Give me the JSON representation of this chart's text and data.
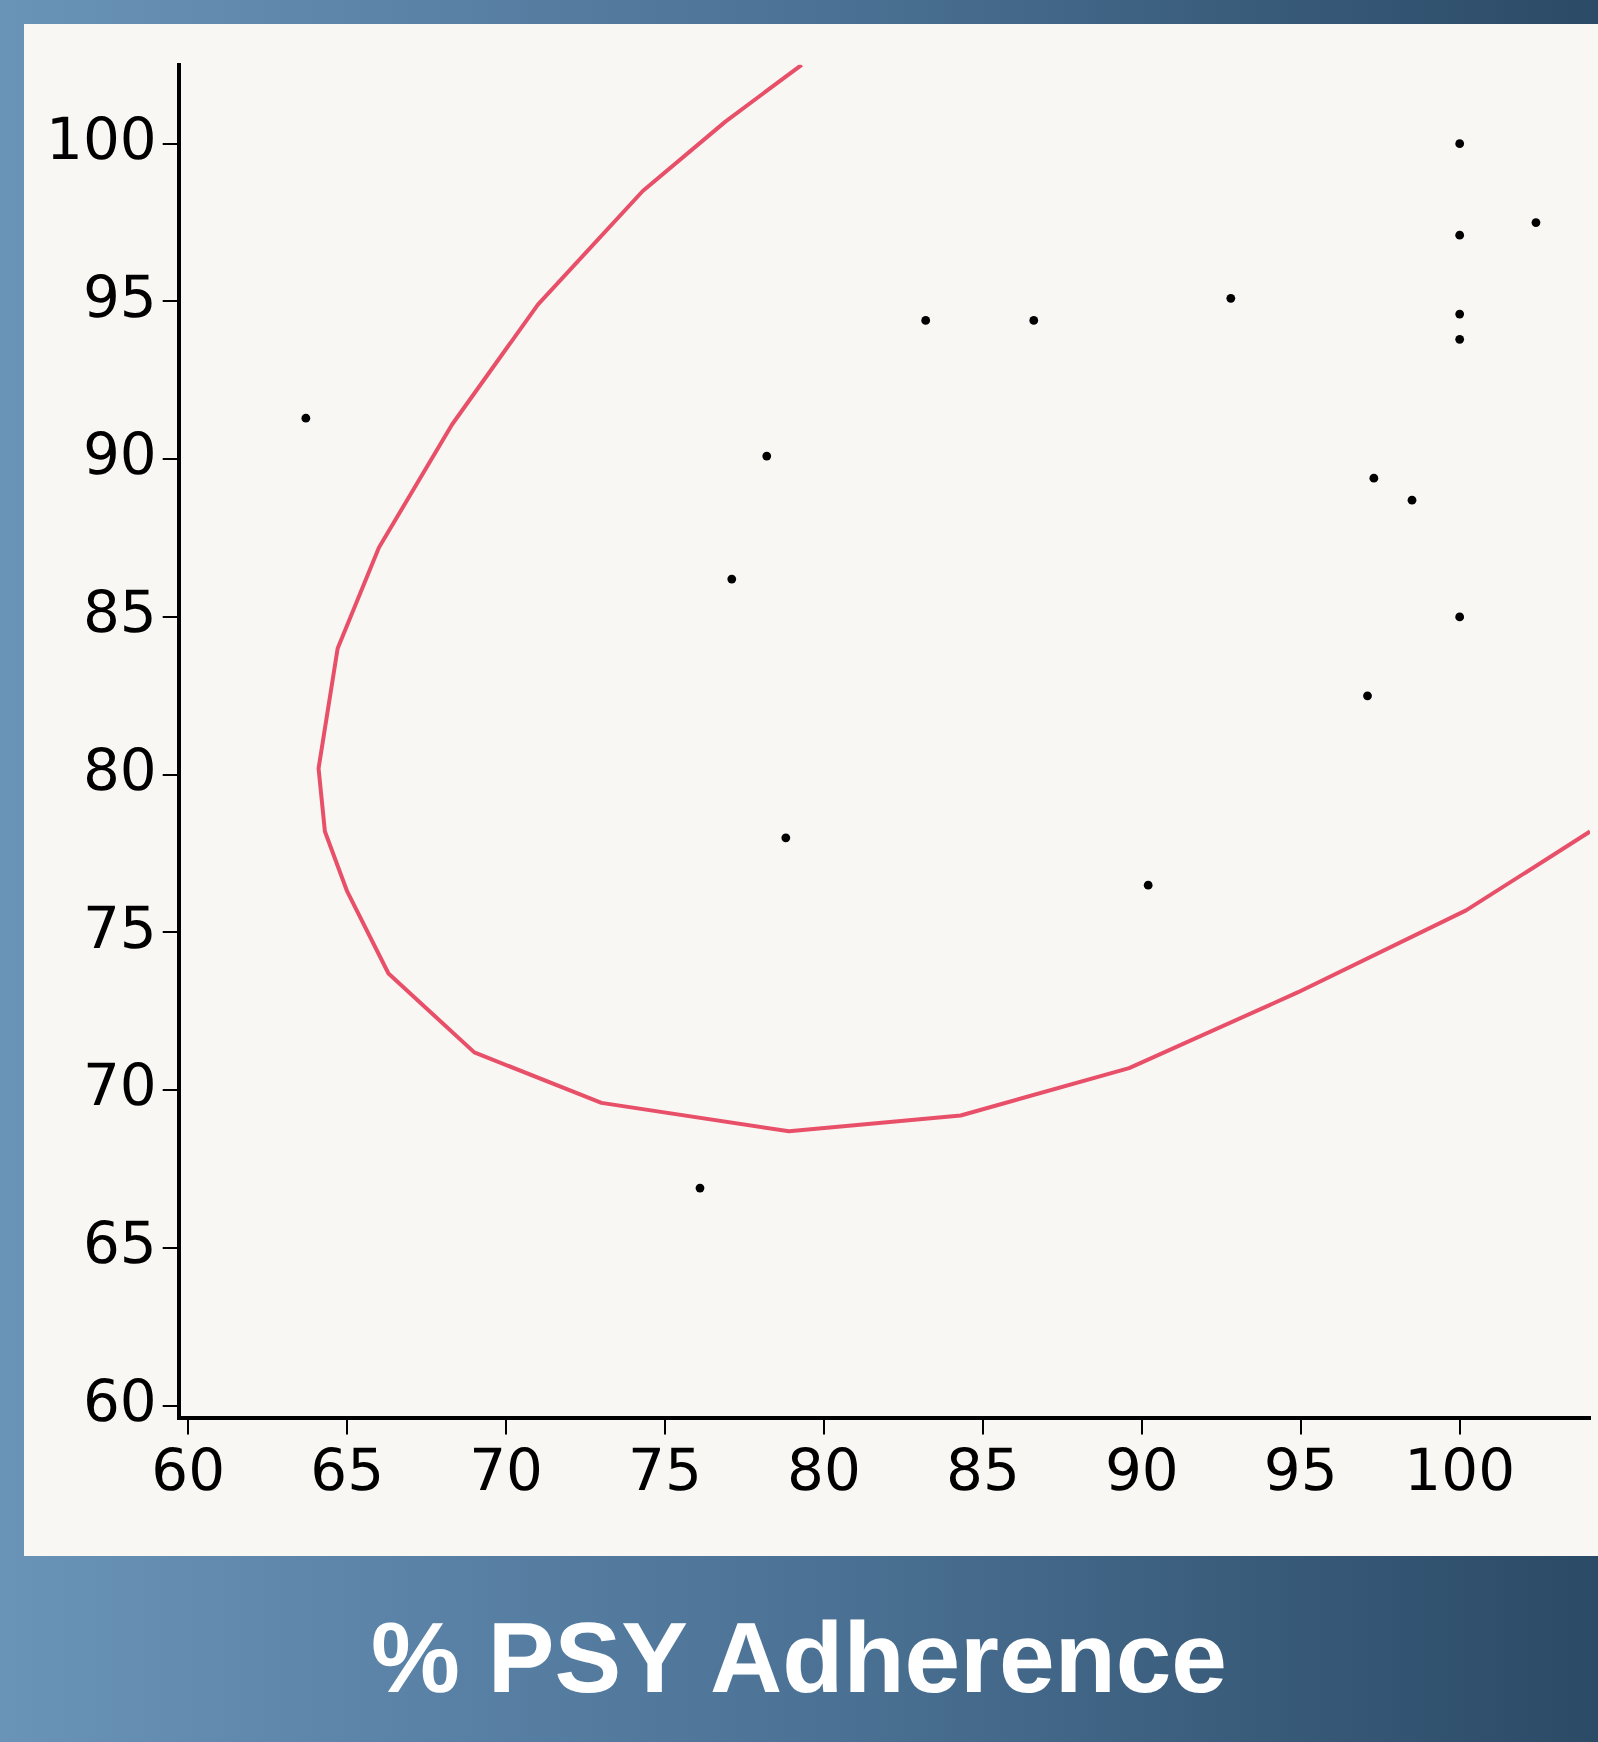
{
  "chart_data": {
    "type": "scatter",
    "xlabel": "% PSY Adherence",
    "xlim": [
      59.7,
      104.1
    ],
    "ylim": [
      59.6,
      102.5
    ],
    "xticks": [
      60,
      65,
      70,
      75,
      80,
      85,
      90,
      95,
      100
    ],
    "yticks": [
      60,
      65,
      70,
      75,
      80,
      85,
      90,
      95,
      100
    ],
    "grid": false,
    "legend": false,
    "series": [
      {
        "type": "scatter",
        "color": "#000000",
        "marker": "circle",
        "x": [
          63.7,
          76.1,
          77.1,
          78.2,
          78.8,
          83.2,
          86.6,
          92.8,
          90.2,
          97.1,
          97.3,
          98.5,
          100,
          100,
          100,
          100,
          100,
          102.4
        ],
        "values": [
          91.3,
          66.9,
          86.2,
          90.1,
          78.0,
          94.4,
          94.4,
          95.1,
          76.5,
          82.5,
          89.4,
          88.7,
          100,
          97.1,
          94.6,
          93.8,
          85.0,
          97.5
        ]
      },
      {
        "type": "line",
        "color": "#e8506a",
        "marker": "none",
        "line_style": "solid",
        "x": [
          79.3,
          76.9,
          74.3,
          71.0,
          68.3,
          66.0,
          64.7,
          64.1,
          64.3,
          65.0,
          66.3,
          69.0,
          73.0,
          78.9,
          84.3,
          89.6,
          94.9,
          100.2,
          104.1
        ],
        "values": [
          102.5,
          100.7,
          98.5,
          94.9,
          91.1,
          87.2,
          84.0,
          80.2,
          78.2,
          76.3,
          73.7,
          71.2,
          69.6,
          68.7,
          69.2,
          70.7,
          73.1,
          75.7,
          78.2
        ]
      }
    ]
  }
}
